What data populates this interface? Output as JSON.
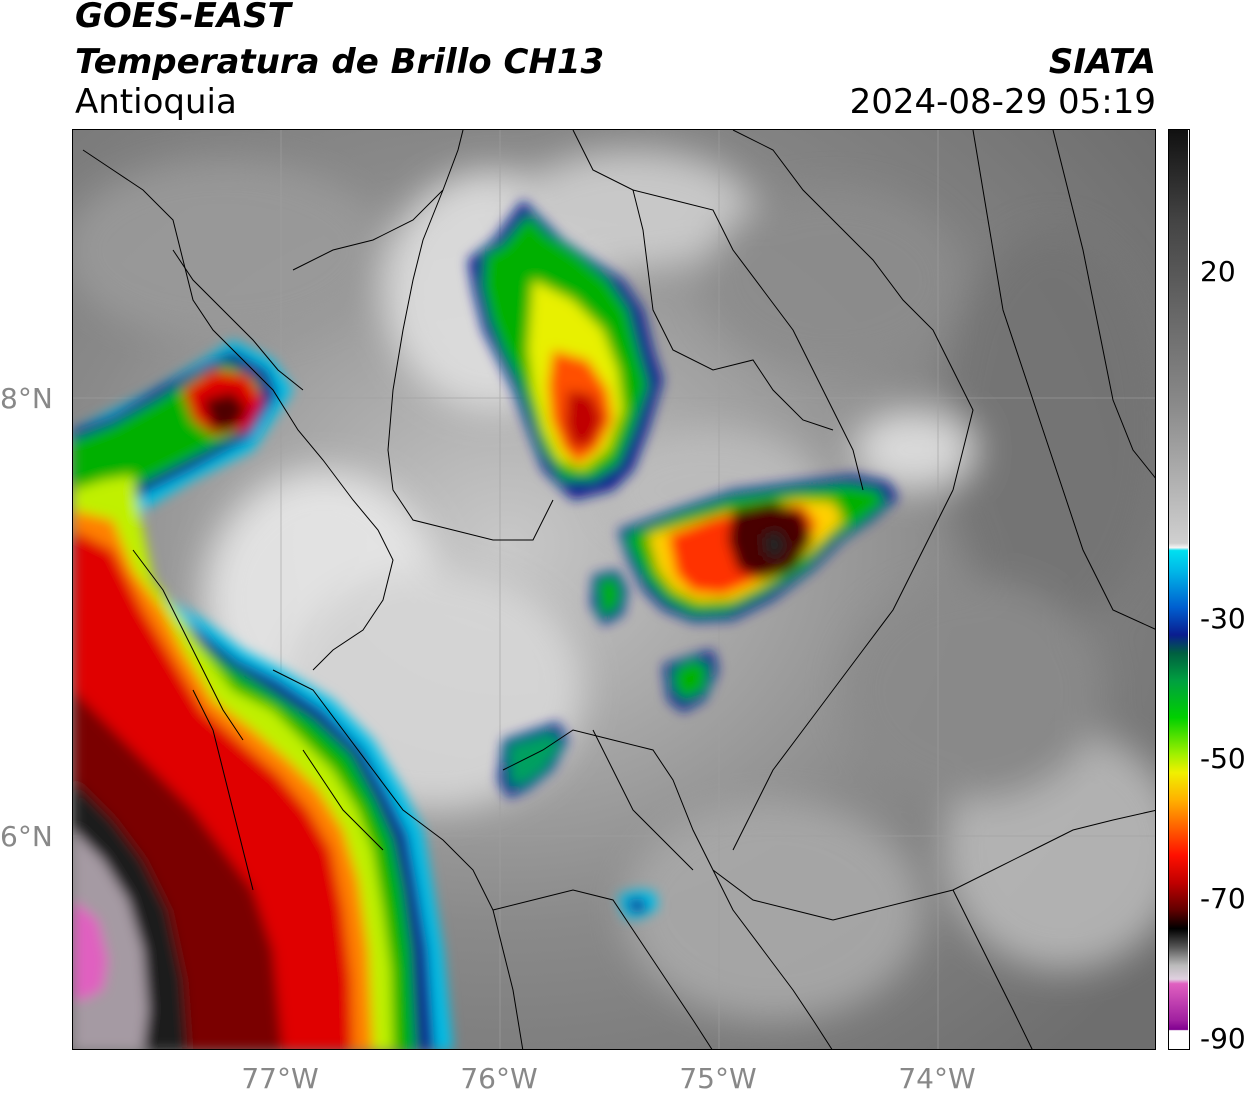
{
  "header": {
    "title_line1": "GOES-EAST",
    "title_line2": "Temperatura de Brillo CH13",
    "region": "Antioquia",
    "brand": "SIATA",
    "datetime": "2024-08-29 05:19"
  },
  "axes": {
    "lat_labels": [
      "8°N",
      "6°N"
    ],
    "lon_labels": [
      "77°W",
      "76°W",
      "75°W",
      "74°W"
    ]
  },
  "colorbar": {
    "tick_labels": [
      "20",
      "-30",
      "-50",
      "-70",
      "-90"
    ],
    "colors": {
      "gray_top": "#111111",
      "gray_mid": "#7f7f7f",
      "gray_bottom": "#f5f5f5",
      "cyan": "#00d8f0",
      "blue": "#0a1d8f",
      "green": "#00b000",
      "yellow": "#f0f000",
      "orange": "#ff8000",
      "red": "#e00000",
      "dark_red": "#500000",
      "black": "#000000",
      "pink": "#e060c0",
      "purple": "#8000a0"
    }
  }
}
